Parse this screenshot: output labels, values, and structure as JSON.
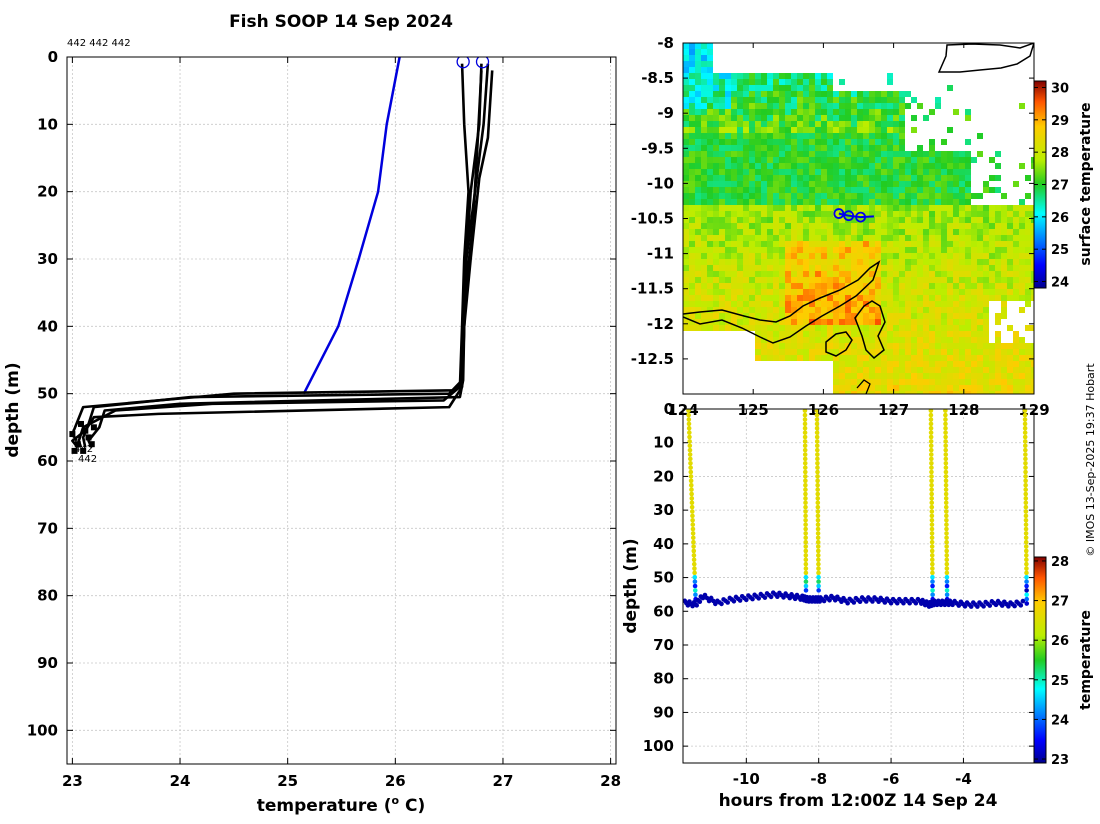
{
  "title": "Fish SOOP 14 Sep 2024",
  "profile_ids_label": "442 442 442",
  "watermark": "© IMOS 13-Sep-2025 19:37 Hobart",
  "chart_data": [
    {
      "id": "profile",
      "type": "line",
      "title": "Fish SOOP 14 Sep 2024",
      "xlabel": "temperature (",
      "xlabel_sup": "o",
      "xlabel_end": " C)",
      "ylabel": "depth (m)",
      "xlim": [
        22.95,
        28.05
      ],
      "ylim": [
        105,
        0
      ],
      "xticks": [
        23,
        24,
        25,
        26,
        27,
        28
      ],
      "yticks": [
        0,
        10,
        20,
        30,
        40,
        50,
        60,
        70,
        80,
        90,
        100
      ],
      "grid": true,
      "end_labels": [
        "442",
        "442"
      ],
      "climatology": {
        "name": "climatology",
        "color": "#0000dd",
        "points": [
          [
            26.04,
            0
          ],
          [
            25.92,
            10
          ],
          [
            25.84,
            20
          ],
          [
            25.66,
            30
          ],
          [
            25.47,
            40
          ],
          [
            25.15,
            50
          ]
        ]
      },
      "profiles": [
        {
          "name": "442",
          "color": "#000000",
          "points": [
            [
              26.8,
              1
            ],
            [
              26.78,
              10
            ],
            [
              26.7,
              20
            ],
            [
              26.66,
              30
            ],
            [
              26.64,
              40
            ],
            [
              26.62,
              48
            ],
            [
              26.55,
              49.5
            ],
            [
              24.5,
              50
            ],
            [
              23.1,
              52
            ],
            [
              23.05,
              54
            ],
            [
              23.0,
              56
            ],
            [
              23.04,
              57
            ]
          ]
        },
        {
          "name": "442",
          "color": "#000000",
          "points": [
            [
              26.86,
              1
            ],
            [
              26.82,
              10
            ],
            [
              26.74,
              20
            ],
            [
              26.66,
              30
            ],
            [
              26.63,
              40
            ],
            [
              26.62,
              48
            ],
            [
              26.5,
              50
            ],
            [
              24.1,
              50.5
            ],
            [
              23.2,
              52
            ],
            [
              23.15,
              54.5
            ],
            [
              23.1,
              56.5
            ],
            [
              23.12,
              58
            ]
          ]
        },
        {
          "name": "442",
          "color": "#000000",
          "points": [
            [
              26.9,
              2
            ],
            [
              26.86,
              12
            ],
            [
              26.78,
              18
            ],
            [
              26.7,
              30
            ],
            [
              26.64,
              40
            ],
            [
              26.63,
              48
            ],
            [
              26.6,
              50.5
            ],
            [
              24.0,
              51.5
            ],
            [
              23.3,
              52.5
            ],
            [
              23.25,
              55
            ],
            [
              23.15,
              57
            ],
            [
              23.18,
              58
            ]
          ]
        },
        {
          "name": "442",
          "color": "#000000",
          "points": [
            [
              26.62,
              1
            ],
            [
              26.64,
              10
            ],
            [
              26.68,
              20
            ],
            [
              26.64,
              30
            ],
            [
              26.62,
              40
            ],
            [
              26.6,
              49
            ],
            [
              26.45,
              51
            ],
            [
              24.3,
              51.5
            ],
            [
              23.4,
              52.5
            ],
            [
              23.1,
              55
            ],
            [
              23.06,
              57
            ],
            [
              23.08,
              58
            ]
          ]
        },
        {
          "name": "442",
          "color": "#000000",
          "points": [
            [
              26.8,
              2
            ],
            [
              26.76,
              14
            ],
            [
              26.72,
              25
            ],
            [
              26.65,
              35
            ],
            [
              26.63,
              45
            ],
            [
              26.62,
              49
            ],
            [
              26.5,
              52
            ],
            [
              23.8,
              53
            ],
            [
              23.2,
              53.5
            ],
            [
              23.12,
              55.5
            ],
            [
              23.0,
              57
            ],
            [
              23.05,
              58
            ]
          ]
        }
      ],
      "surface_markers": [
        {
          "temp": 26.63,
          "depth": 0.7
        },
        {
          "temp": 26.81,
          "depth": 0.7
        }
      ]
    },
    {
      "id": "sst_map",
      "type": "heatmap",
      "xlabel": "",
      "ylabel": "",
      "xlim": [
        124,
        129
      ],
      "ylim": [
        -13,
        -8
      ],
      "xticks": [
        124,
        125,
        126,
        127,
        128,
        129
      ],
      "yticks": [
        -8,
        -8.5,
        -9,
        -9.5,
        -10,
        -10.5,
        -11,
        -11.5,
        -12,
        -12.5
      ],
      "colorbar_label": "surface temperature",
      "clim": [
        23.8,
        30.2
      ],
      "colorbar_ticks": [
        24,
        25,
        26,
        27,
        28,
        29,
        30
      ],
      "track": [
        [
          126.22,
          -10.43
        ],
        [
          126.36,
          -10.46
        ],
        [
          126.53,
          -10.48
        ],
        [
          126.72,
          -10.47
        ]
      ],
      "track_markers": [
        [
          126.22,
          -10.43
        ],
        [
          126.36,
          -10.46
        ],
        [
          126.53,
          -10.48
        ]
      ]
    },
    {
      "id": "time_depth",
      "type": "scatter",
      "xlabel": "hours from 12:00Z 14 Sep 24",
      "ylabel": "depth (m)",
      "xlim": [
        -11.75,
        -2.05
      ],
      "ylim": [
        105,
        0
      ],
      "xticks": [
        -10,
        -8,
        -6,
        -4
      ],
      "yticks": [
        0,
        10,
        20,
        30,
        40,
        50,
        60,
        70,
        80,
        90,
        100
      ],
      "colorbar_label": "temperature",
      "clim": [
        22.9,
        28.1
      ],
      "colorbar_ticks": [
        23,
        24,
        25,
        26,
        27,
        28
      ],
      "casts": [
        {
          "name": "cast 1 descent",
          "hour": -11.6,
          "bottom_hour": -11.4,
          "temp": 26.6,
          "bottom_temp": 23.05,
          "bottom_depth": 57
        },
        {
          "name": "cast 2 descent",
          "hour": -8.38,
          "bottom_hour": -8.35,
          "temp": 26.6,
          "bottom_temp": 23.05,
          "bottom_depth": 55
        },
        {
          "name": "cast 3 descent",
          "hour": -8.05,
          "bottom_hour": -8.0,
          "temp": 26.6,
          "bottom_temp": 23.05,
          "bottom_depth": 55
        },
        {
          "name": "cast 4 descent",
          "hour": -4.9,
          "bottom_hour": -4.85,
          "temp": 26.6,
          "bottom_temp": 23.05,
          "bottom_depth": 57
        },
        {
          "name": "cast 5 descent",
          "hour": -4.5,
          "bottom_hour": -4.45,
          "temp": 26.6,
          "bottom_temp": 23.05,
          "bottom_depth": 57
        },
        {
          "name": "cast 6 descent",
          "hour": -2.3,
          "bottom_hour": -2.25,
          "temp": 26.6,
          "bottom_temp": 23.05,
          "bottom_depth": 58
        }
      ],
      "bottom_track": [
        [
          -11.7,
          57.5
        ],
        [
          -11.4,
          58
        ],
        [
          -11.2,
          55.5
        ],
        [
          -10.8,
          57.5
        ],
        [
          -10.4,
          56.5
        ],
        [
          -10.0,
          56
        ],
        [
          -9.6,
          55.5
        ],
        [
          -9.2,
          55
        ],
        [
          -8.8,
          55.5
        ],
        [
          -8.45,
          56
        ],
        [
          -8.3,
          56.5
        ],
        [
          -8.1,
          56.5
        ],
        [
          -7.95,
          56.5
        ],
        [
          -7.6,
          56
        ],
        [
          -7.2,
          57
        ],
        [
          -6.8,
          56.5
        ],
        [
          -6.4,
          56.5
        ],
        [
          -6.0,
          57
        ],
        [
          -5.6,
          57
        ],
        [
          -5.2,
          57
        ],
        [
          -4.95,
          58
        ],
        [
          -4.8,
          57.5
        ],
        [
          -4.55,
          57.5
        ],
        [
          -4.3,
          57.5
        ],
        [
          -3.9,
          58
        ],
        [
          -3.5,
          58
        ],
        [
          -3.1,
          57.5
        ],
        [
          -2.7,
          58
        ],
        [
          -2.3,
          57.5
        ]
      ]
    }
  ]
}
